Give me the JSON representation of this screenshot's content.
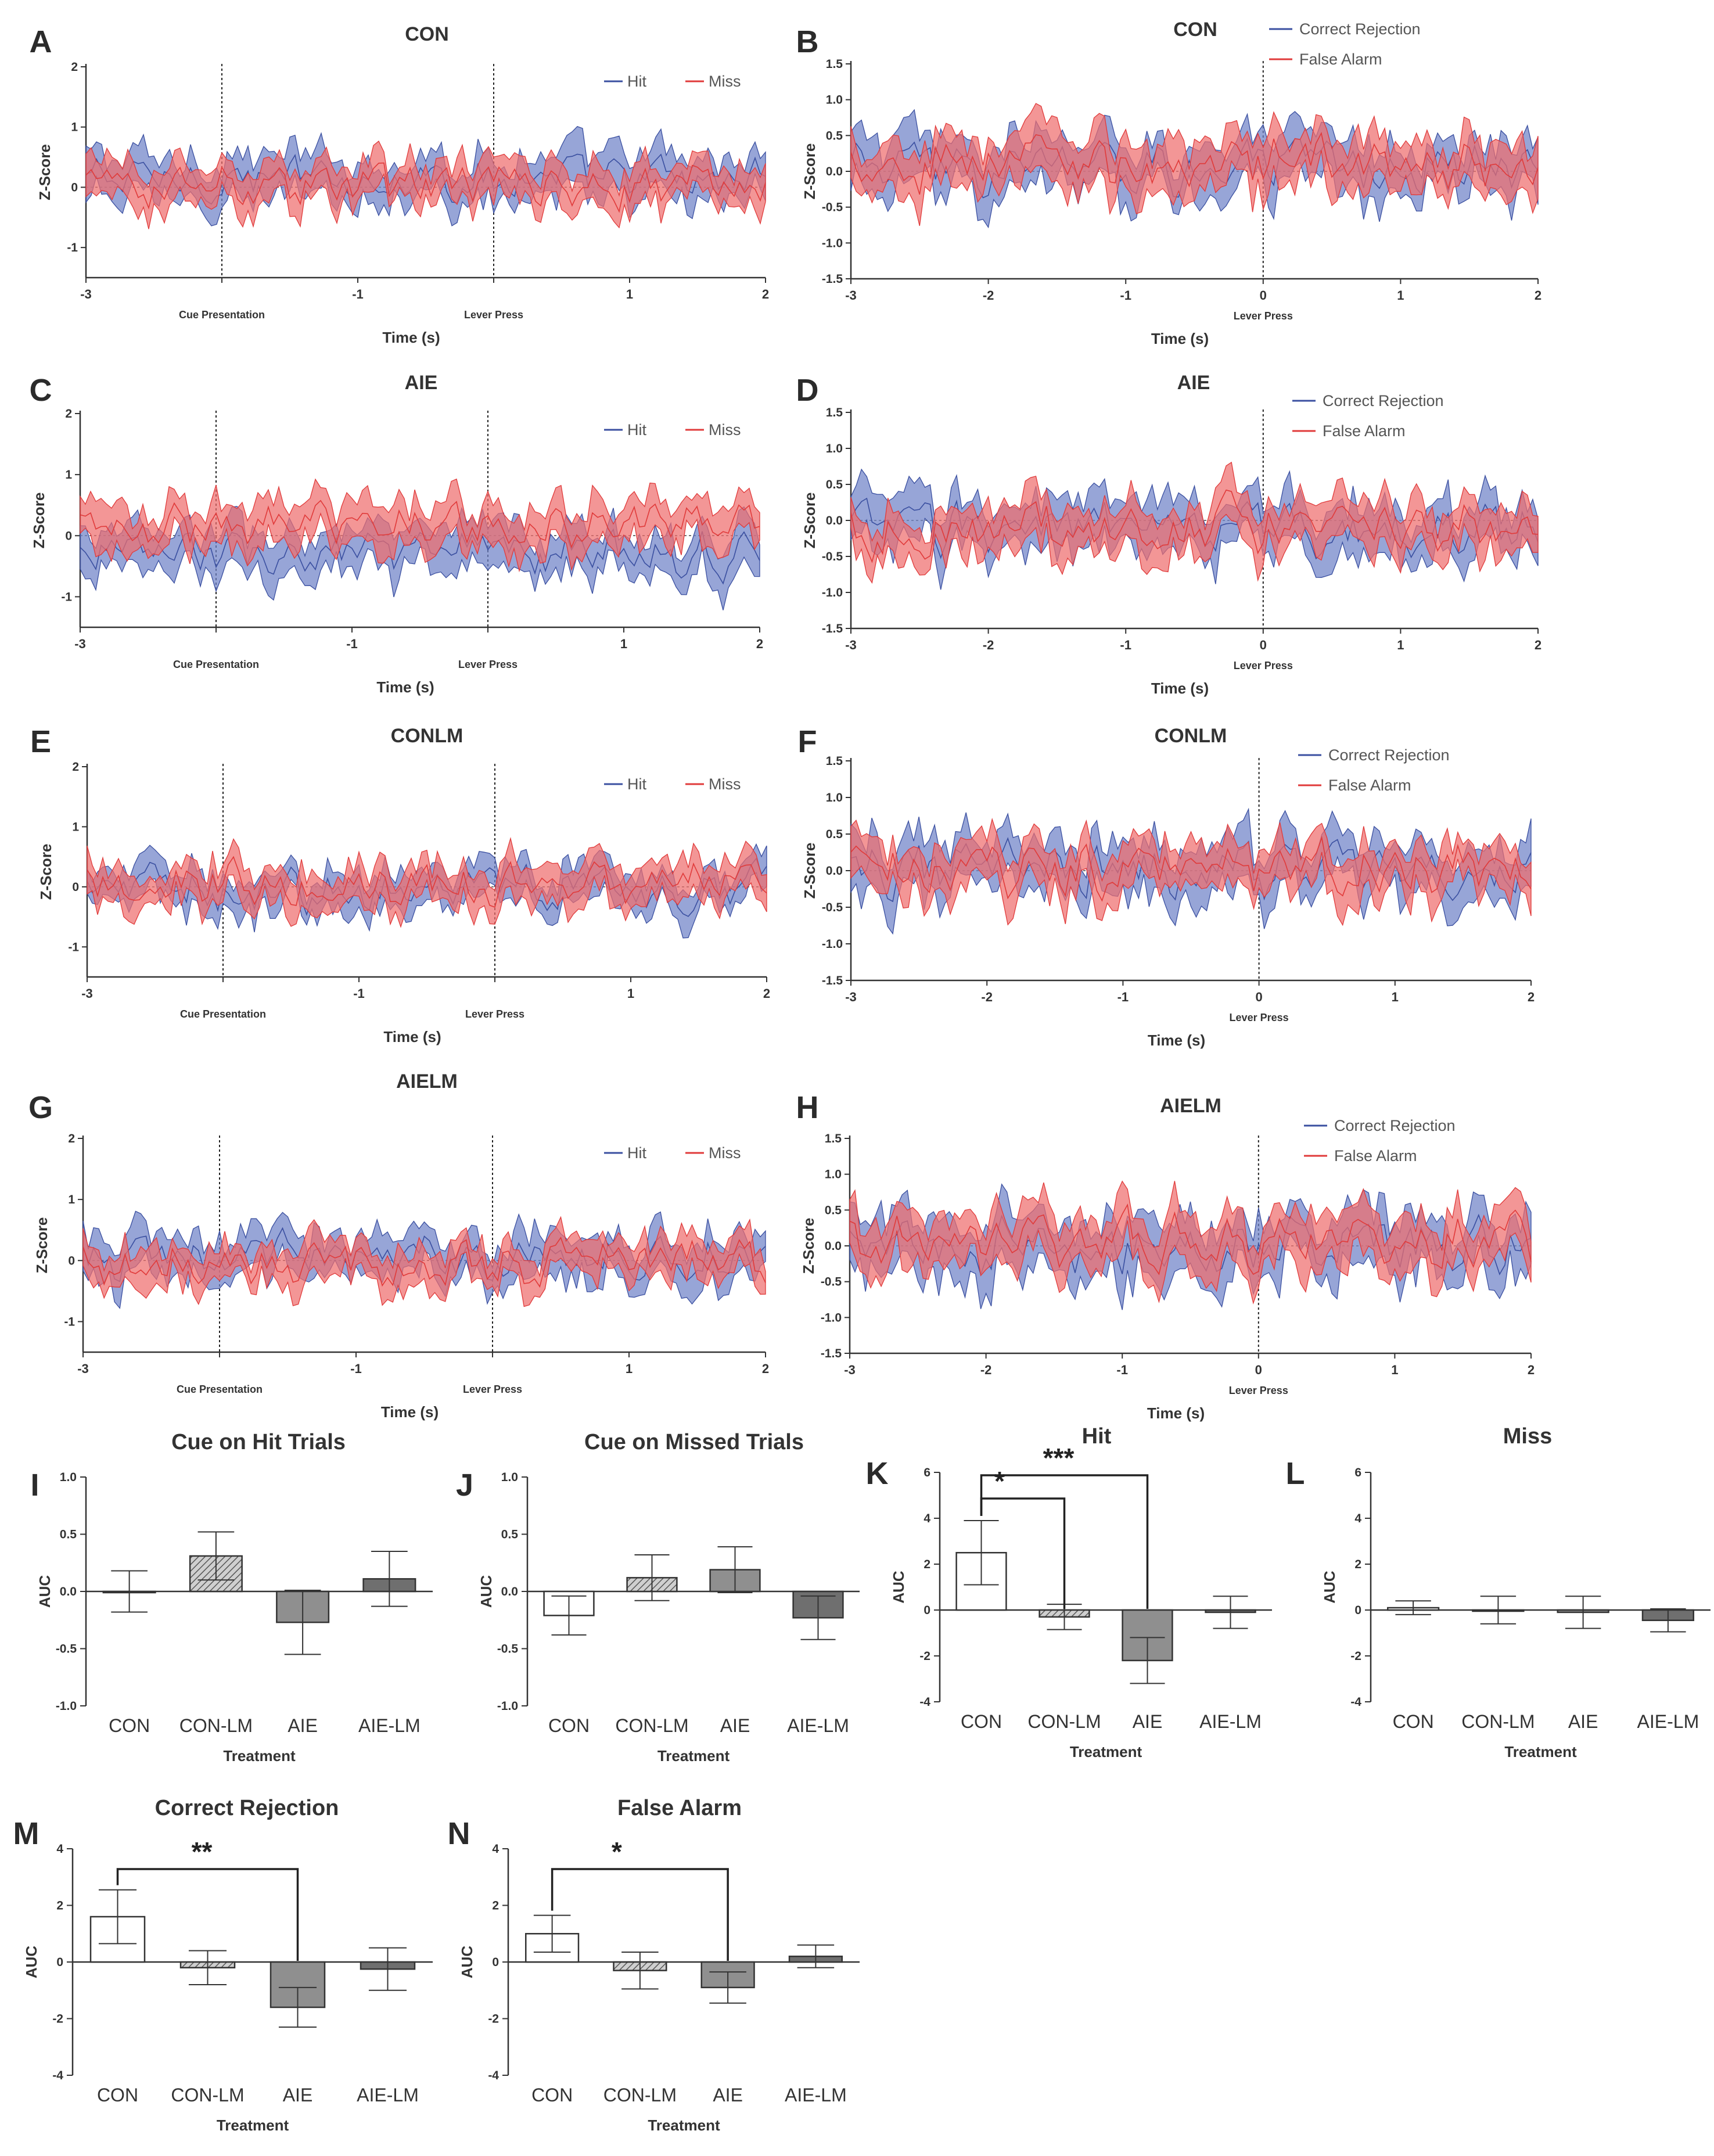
{
  "figure": {
    "trace_panels": [
      {
        "label": "A",
        "title": "CON",
        "legend": [
          "Hit",
          "Miss"
        ],
        "events": [
          "Cue Presentation",
          "Lever Press"
        ],
        "ylabel": "Z-Score",
        "xlabel": "Time (s)",
        "yticks": [
          "2",
          "1",
          "0",
          "-1"
        ],
        "xticks": [
          "-3",
          "-1",
          "1",
          "2"
        ]
      },
      {
        "label": "B",
        "title": "CON",
        "legend": [
          "Correct Rejection",
          "False Alarm"
        ],
        "events": [
          "Lever Press"
        ],
        "ylabel": "Z-Score",
        "xlabel": "Time (s)",
        "yticks": [
          "1.5",
          "1.0",
          "0.5",
          "0.0",
          "-0.5",
          "-1.0",
          "-1.5"
        ],
        "xticks": [
          "-3",
          "-2",
          "-1",
          "0",
          "1",
          "2"
        ]
      },
      {
        "label": "C",
        "title": "AIE",
        "legend": [
          "Hit",
          "Miss"
        ],
        "events": [
          "Cue Presentation",
          "Lever Press"
        ],
        "ylabel": "Z-Score",
        "xlabel": "Time (s)",
        "yticks": [
          "2",
          "1",
          "0",
          "-1"
        ],
        "xticks": [
          "-3",
          "-1",
          "1",
          "2"
        ]
      },
      {
        "label": "D",
        "title": "AIE",
        "legend": [
          "Correct Rejection",
          "False Alarm"
        ],
        "events": [
          "Lever Press"
        ],
        "ylabel": "Z-Score",
        "xlabel": "Time (s)",
        "yticks": [
          "1.5",
          "1.0",
          "0.5",
          "0.0",
          "-0.5",
          "-1.0",
          "-1.5"
        ],
        "xticks": [
          "-3",
          "-2",
          "-1",
          "0",
          "1",
          "2"
        ]
      },
      {
        "label": "E",
        "title": "CONLM",
        "legend": [
          "Hit",
          "Miss"
        ],
        "events": [
          "Cue Presentation",
          "Lever Press"
        ],
        "ylabel": "Z-Score",
        "xlabel": "Time (s)",
        "yticks": [
          "2",
          "1",
          "0",
          "-1"
        ],
        "xticks": [
          "-3",
          "-1",
          "1",
          "2"
        ]
      },
      {
        "label": "F",
        "title": "CONLM",
        "legend": [
          "Correct Rejection",
          "False Alarm"
        ],
        "events": [
          "Lever Press"
        ],
        "ylabel": "Z-Score",
        "xlabel": "Time (s)",
        "yticks": [
          "1.5",
          "1.0",
          "0.5",
          "0.0",
          "-0.5",
          "-1.0",
          "-1.5"
        ],
        "xticks": [
          "-3",
          "-2",
          "-1",
          "0",
          "1",
          "2"
        ]
      },
      {
        "label": "G",
        "title": "AIELM",
        "legend": [
          "Hit",
          "Miss"
        ],
        "events": [
          "Cue Presentation",
          "Lever Press"
        ],
        "ylabel": "Z-Score",
        "xlabel": "Time (s)",
        "yticks": [
          "2",
          "1",
          "0",
          "-1"
        ],
        "xticks": [
          "-3",
          "-1",
          "1",
          "2"
        ]
      },
      {
        "label": "H",
        "title": "AIELM",
        "legend": [
          "Correct Rejection",
          "False Alarm"
        ],
        "events": [
          "Lever Press"
        ],
        "ylabel": "Z-Score",
        "xlabel": "Time (s)",
        "yticks": [
          "1.5",
          "1.0",
          "0.5",
          "0.0",
          "-0.5",
          "-1.0",
          "-1.5"
        ],
        "xticks": [
          "-3",
          "-2",
          "-1",
          "0",
          "1",
          "2"
        ]
      }
    ],
    "colors": {
      "blue_line": "#3a4fa0",
      "blue_fill": "#6f82c8",
      "red_line": "#e03a3a",
      "red_fill": "#ee6d6d",
      "axis": "#333333",
      "bar_con": "#ffffff",
      "bar_conlm": "#b9b9b9",
      "bar_aie": "#8f8f8f",
      "bar_aielm": "#6f6f6f"
    }
  },
  "chart_data": [
    {
      "type": "line",
      "label": "A",
      "title": "CON",
      "xlabel": "Time (s)",
      "ylabel": "Z-Score",
      "xlim": [
        -3,
        2
      ],
      "ylim": [
        -1.5,
        2
      ],
      "events": [
        {
          "x": -2,
          "name": "Cue Presentation"
        },
        {
          "x": 0,
          "name": "Lever Press"
        }
      ],
      "series": [
        {
          "name": "Hit",
          "color": "#3a4fa0",
          "mean": 0.15,
          "band": 0.35
        },
        {
          "name": "Miss",
          "color": "#e03a3a",
          "mean": 0.05,
          "band": 0.3
        }
      ]
    },
    {
      "type": "line",
      "label": "B",
      "title": "CON",
      "xlabel": "Time (s)",
      "ylabel": "Z-Score",
      "xlim": [
        -3,
        2
      ],
      "ylim": [
        -1.5,
        1.5
      ],
      "events": [
        {
          "x": 0,
          "name": "Lever Press"
        }
      ],
      "series": [
        {
          "name": "Correct Rejection",
          "color": "#3a4fa0",
          "mean": 0.05,
          "band": 0.35
        },
        {
          "name": "False Alarm",
          "color": "#e03a3a",
          "mean": 0.1,
          "band": 0.35
        }
      ]
    },
    {
      "type": "line",
      "label": "C",
      "title": "AIE",
      "xlabel": "Time (s)",
      "ylabel": "Z-Score",
      "xlim": [
        -3,
        2
      ],
      "ylim": [
        -1.5,
        2
      ],
      "events": [
        {
          "x": -2,
          "name": "Cue Presentation"
        },
        {
          "x": 0,
          "name": "Lever Press"
        }
      ],
      "series": [
        {
          "name": "Hit",
          "color": "#3a4fa0",
          "mean": -0.3,
          "band": 0.35
        },
        {
          "name": "Miss",
          "color": "#e03a3a",
          "mean": 0.15,
          "band": 0.35
        }
      ]
    },
    {
      "type": "line",
      "label": "D",
      "title": "AIE",
      "xlabel": "Time (s)",
      "ylabel": "Z-Score",
      "xlim": [
        -3,
        2
      ],
      "ylim": [
        -1.5,
        1.5
      ],
      "events": [
        {
          "x": 0,
          "name": "Lever Press"
        }
      ],
      "series": [
        {
          "name": "Correct Rejection",
          "color": "#3a4fa0",
          "mean": -0.1,
          "band": 0.35
        },
        {
          "name": "False Alarm",
          "color": "#e03a3a",
          "mean": -0.1,
          "band": 0.3
        }
      ]
    },
    {
      "type": "line",
      "label": "E",
      "title": "CONLM",
      "xlabel": "Time (s)",
      "ylabel": "Z-Score",
      "xlim": [
        -3,
        2
      ],
      "ylim": [
        -1.5,
        2
      ],
      "events": [
        {
          "x": -2,
          "name": "Cue Presentation"
        },
        {
          "x": 0,
          "name": "Lever Press"
        }
      ],
      "series": [
        {
          "name": "Hit",
          "color": "#3a4fa0",
          "mean": -0.05,
          "band": 0.3
        },
        {
          "name": "Miss",
          "color": "#e03a3a",
          "mean": 0.05,
          "band": 0.3
        }
      ]
    },
    {
      "type": "line",
      "label": "F",
      "title": "CONLM",
      "xlabel": "Time (s)",
      "ylabel": "Z-Score",
      "xlim": [
        -3,
        2
      ],
      "ylim": [
        -1.5,
        1.5
      ],
      "events": [
        {
          "x": 0,
          "name": "Lever Press"
        }
      ],
      "series": [
        {
          "name": "Correct Rejection",
          "color": "#3a4fa0",
          "mean": 0.0,
          "band": 0.35
        },
        {
          "name": "False Alarm",
          "color": "#e03a3a",
          "mean": 0.0,
          "band": 0.3
        }
      ]
    },
    {
      "type": "line",
      "label": "G",
      "title": "AIELM",
      "xlabel": "Time (s)",
      "ylabel": "Z-Score",
      "xlim": [
        -3,
        2
      ],
      "ylim": [
        -1.5,
        2
      ],
      "events": [
        {
          "x": -2,
          "name": "Cue Presentation"
        },
        {
          "x": 0,
          "name": "Lever Press"
        }
      ],
      "series": [
        {
          "name": "Hit",
          "color": "#3a4fa0",
          "mean": 0.05,
          "band": 0.35
        },
        {
          "name": "Miss",
          "color": "#e03a3a",
          "mean": -0.05,
          "band": 0.3
        }
      ]
    },
    {
      "type": "line",
      "label": "H",
      "title": "AIELM",
      "xlabel": "Time (s)",
      "ylabel": "Z-Score",
      "xlim": [
        -3,
        2
      ],
      "ylim": [
        -1.5,
        1.5
      ],
      "events": [
        {
          "x": 0,
          "name": "Lever Press"
        }
      ],
      "series": [
        {
          "name": "Correct Rejection",
          "color": "#3a4fa0",
          "mean": 0.0,
          "band": 0.4
        },
        {
          "name": "False Alarm",
          "color": "#e03a3a",
          "mean": 0.05,
          "band": 0.35
        }
      ]
    },
    {
      "type": "bar",
      "label": "I",
      "title": "Cue on Hit Trials",
      "xlabel": "Treatment",
      "ylabel": "AUC",
      "ylim": [
        -1.0,
        1.0
      ],
      "yticks": [
        "1.0",
        "0.5",
        "0.0",
        "-0.5",
        "-1.0"
      ],
      "categories": [
        "CON",
        "CON-LM",
        "AIE",
        "AIE-LM"
      ],
      "values": [
        0.0,
        0.31,
        -0.27,
        0.11
      ],
      "errors": [
        0.18,
        0.21,
        0.28,
        0.24
      ],
      "significance": []
    },
    {
      "type": "bar",
      "label": "J",
      "title": "Cue on Missed Trials",
      "xlabel": "Treatment",
      "ylabel": "AUC",
      "ylim": [
        -1.0,
        1.0
      ],
      "yticks": [
        "1.0",
        "0.5",
        "0.0",
        "-0.5",
        "-1.0"
      ],
      "categories": [
        "CON",
        "CON-LM",
        "AIE",
        "AIE-LM"
      ],
      "values": [
        -0.21,
        0.12,
        0.19,
        -0.23
      ],
      "errors": [
        0.17,
        0.2,
        0.2,
        0.19
      ],
      "significance": []
    },
    {
      "type": "bar",
      "label": "K",
      "title": "Hit",
      "xlabel": "Treatment",
      "ylabel": "AUC",
      "ylim": [
        -4,
        6
      ],
      "yticks": [
        "6",
        "4",
        "2",
        "0",
        "-2",
        "-4"
      ],
      "categories": [
        "CON",
        "CON-LM",
        "AIE",
        "AIE-LM"
      ],
      "values": [
        2.5,
        -0.3,
        -2.2,
        -0.1
      ],
      "errors": [
        1.4,
        0.55,
        1.0,
        0.7
      ],
      "significance": [
        {
          "from": 0,
          "to": 1,
          "label": "*"
        },
        {
          "from": 0,
          "to": 2,
          "label": "***"
        }
      ]
    },
    {
      "type": "bar",
      "label": "L",
      "title": "Miss",
      "xlabel": "Treatment",
      "ylabel": "AUC",
      "ylim": [
        -4,
        6
      ],
      "yticks": [
        "6",
        "4",
        "2",
        "0",
        "-2",
        "-4"
      ],
      "categories": [
        "CON",
        "CON-LM",
        "AIE",
        "AIE-LM"
      ],
      "values": [
        0.1,
        0.0,
        -0.1,
        -0.45
      ],
      "errors": [
        0.3,
        0.6,
        0.7,
        0.5
      ],
      "significance": []
    },
    {
      "type": "bar",
      "label": "M",
      "title": "Correct Rejection",
      "xlabel": "Treatment",
      "ylabel": "AUC",
      "ylim": [
        -4,
        4
      ],
      "yticks": [
        "4",
        "2",
        "0",
        "-2",
        "-4"
      ],
      "categories": [
        "CON",
        "CON-LM",
        "AIE",
        "AIE-LM"
      ],
      "values": [
        1.6,
        -0.2,
        -1.6,
        -0.25
      ],
      "errors": [
        0.95,
        0.6,
        0.7,
        0.75
      ],
      "significance": [
        {
          "from": 0,
          "to": 2,
          "label": "**"
        }
      ]
    },
    {
      "type": "bar",
      "label": "N",
      "title": "False Alarm",
      "xlabel": "Treatment",
      "ylabel": "AUC",
      "ylim": [
        -4,
        4
      ],
      "yticks": [
        "4",
        "2",
        "0",
        "-2",
        "-4"
      ],
      "categories": [
        "CON",
        "CON-LM",
        "AIE",
        "AIE-LM"
      ],
      "values": [
        1.0,
        -0.3,
        -0.9,
        0.2
      ],
      "errors": [
        0.65,
        0.65,
        0.55,
        0.4
      ],
      "significance": [
        {
          "from": 0,
          "to": 2,
          "label": "*"
        }
      ]
    }
  ]
}
